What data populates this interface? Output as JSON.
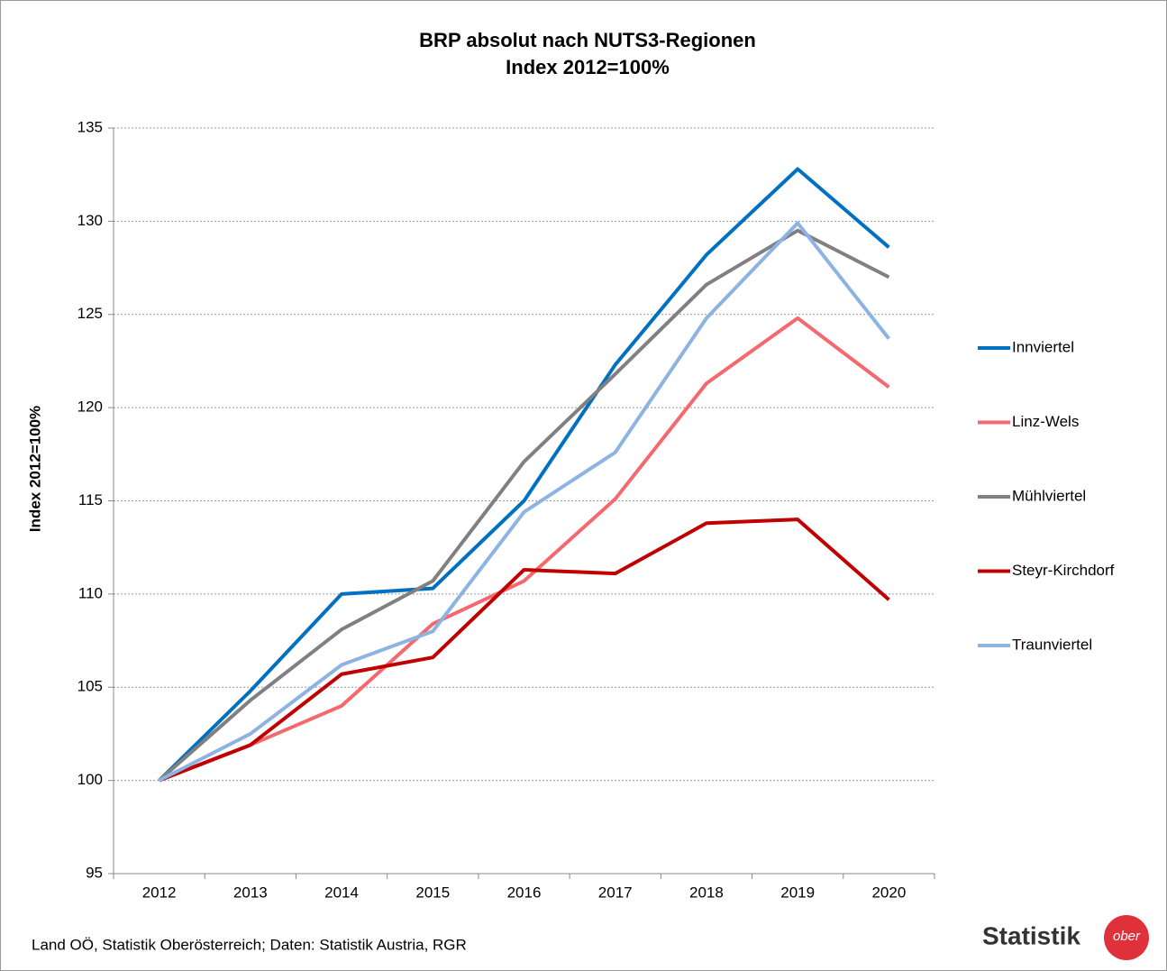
{
  "chart_data": {
    "type": "line",
    "title": "BRP absolut nach NUTS3-Regionen",
    "subtitle": "Index 2012=100%",
    "y_label": "Index 2012=100%",
    "source": "Land OÖ, Statistik Oberösterreich; Daten: Statistik Austria, RGR",
    "logo": "Statistik",
    "logo_badge": "ober",
    "categories": [
      "2012",
      "2013",
      "2014",
      "2015",
      "2016",
      "2017",
      "2018",
      "2019",
      "2020"
    ],
    "series": [
      {
        "name": "Innviertel",
        "color": "#0070c0",
        "values": [
          100,
          104.8,
          110.0,
          110.3,
          115.0,
          122.3,
          128.2,
          132.8,
          128.6
        ]
      },
      {
        "name": "Linz-Wels",
        "color": "#f5696e",
        "values": [
          100,
          101.9,
          104.0,
          108.4,
          110.7,
          115.1,
          121.3,
          124.8,
          121.1
        ]
      },
      {
        "name": "Mühlviertel",
        "color": "#808080",
        "values": [
          100,
          104.3,
          108.1,
          110.7,
          117.1,
          121.8,
          126.6,
          129.5,
          127.0
        ]
      },
      {
        "name": "Steyr-Kirchdorf",
        "color": "#c00000",
        "values": [
          100,
          101.9,
          105.7,
          106.6,
          111.3,
          111.1,
          113.8,
          114.0,
          109.7
        ]
      },
      {
        "name": "Traunviertel",
        "color": "#8db3e2",
        "values": [
          100,
          102.5,
          106.2,
          108.0,
          114.4,
          117.6,
          124.8,
          129.9,
          123.7
        ]
      }
    ],
    "ylim": [
      95,
      135
    ],
    "yticks": [
      95,
      100,
      105,
      110,
      115,
      120,
      125,
      130,
      135
    ],
    "grid": true,
    "legend": "right"
  }
}
